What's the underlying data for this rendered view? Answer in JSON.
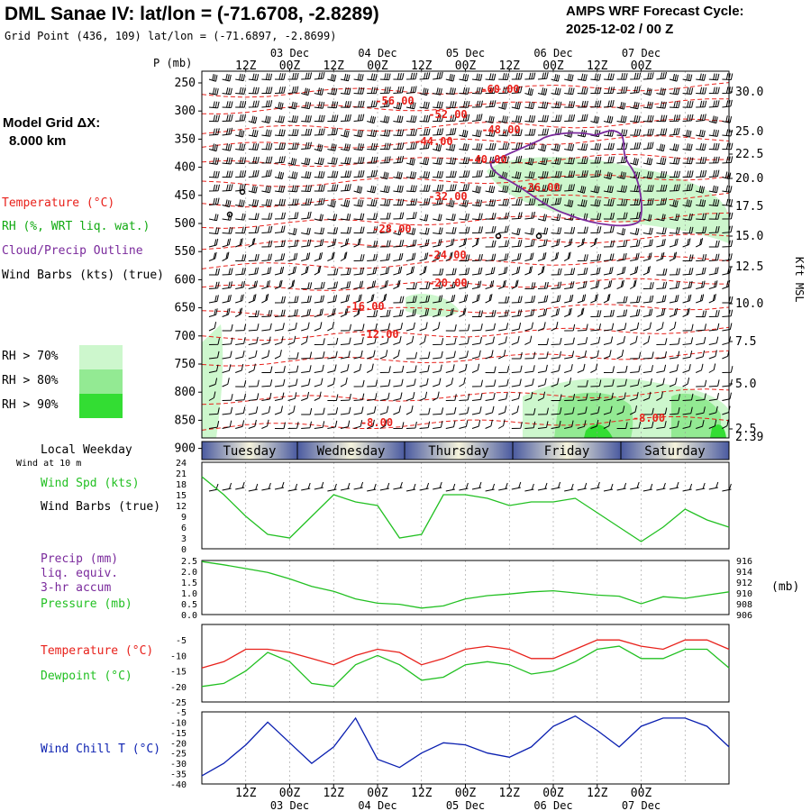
{
  "header": {
    "title": "DML Sanae IV:  lat/lon = (-71.6708, -2.8289)",
    "grid_point": "Grid Point (436, 109) lat/lon = (-71.6897, -2.8699)",
    "cycle_label": "AMPS WRF Forecast Cycle:",
    "cycle_value": "2025-12-02 / 00  Z"
  },
  "left_panel": {
    "model_grid_label": "Model Grid ΔX:",
    "model_grid_value": "8.000 km",
    "legend_temperature": "Temperature (°C)",
    "legend_rh": "RH (%, WRT liq. wat.)",
    "legend_cloud": "Cloud/Precip Outline",
    "legend_wind": "Wind Barbs (kts) (true)",
    "rh_levels": [
      {
        "label": "RH > 70%",
        "color": "#cdf7cd"
      },
      {
        "label": "RH > 80%",
        "color": "#93ea93"
      },
      {
        "label": "RH > 90%",
        "color": "#33dd33"
      }
    ]
  },
  "colors": {
    "temperature": "#e8211b",
    "rh_text": "#11aa11",
    "cloud": "#7a2a9c",
    "green_line": "#22c022",
    "blue_line": "#0a1fb0",
    "day_band": "#4a5aa0"
  },
  "time_axis": {
    "top_times": [
      "12Z",
      "00Z",
      "12Z",
      "00Z",
      "12Z",
      "00Z",
      "12Z",
      "00Z",
      "12Z",
      "00Z"
    ],
    "top_dates": [
      "03 Dec",
      "04 Dec",
      "05 Dec",
      "06 Dec",
      "07 Dec"
    ],
    "bottom_times": [
      "12Z",
      "00Z",
      "12Z",
      "00Z",
      "12Z",
      "00Z",
      "12Z",
      "00Z",
      "12Z",
      "00Z"
    ],
    "bottom_dates": [
      "03 Dec",
      "04 Dec",
      "05 Dec",
      "06 Dec",
      "07 Dec"
    ]
  },
  "cross_section": {
    "pressure_unit": "P (mb)",
    "pressure_ticks": [
      "250",
      "300",
      "350",
      "400",
      "450",
      "500",
      "550",
      "600",
      "650",
      "700",
      "750",
      "800",
      "850",
      "900"
    ],
    "height_ticks": [
      "30.0",
      "25.0",
      "22.5",
      "20.0",
      "17.5",
      "15.0",
      "12.5",
      "10.0",
      "7.5",
      "5.0",
      "2.5"
    ],
    "height_extra": "2.39",
    "height_axis_label": "Kft MSL",
    "temp_labels": [
      "-60.00",
      "-56.00",
      "-52.00",
      "-48.00",
      "-44.00",
      "-40.00",
      "-36.00",
      "-32.00",
      "-28.00",
      "-24.00",
      "-20.00",
      "-16.00",
      "-12.00",
      "-8.00",
      "-8.00"
    ]
  },
  "weekdays": {
    "header": "Local Weekday",
    "wind_note": "Wind at 10 m",
    "days": [
      "Tuesday",
      "Wednesday",
      "Thursday",
      "Friday",
      "Saturday"
    ]
  },
  "chart_data": [
    {
      "type": "line",
      "title": "Wind Spd (kts)",
      "secondary_label": "Wind Barbs (true)",
      "ylim": [
        0,
        24
      ],
      "yticks": [
        "0",
        "3",
        "6",
        "9",
        "12",
        "15",
        "18",
        "21",
        "24"
      ],
      "x_hours": [
        0,
        6,
        12,
        18,
        24,
        30,
        36,
        42,
        48,
        54,
        60,
        66,
        72,
        78,
        84,
        90,
        96,
        102,
        108,
        114,
        120,
        126,
        132,
        138,
        144
      ],
      "values": [
        20,
        15,
        9,
        4,
        3,
        9,
        15,
        13,
        12,
        3,
        4,
        15,
        15,
        14,
        12,
        13,
        13,
        14,
        10,
        6,
        2,
        6,
        11,
        8,
        6
      ]
    },
    {
      "type": "line",
      "title": "Pressure (mb)",
      "precip_label": "Precip (mm)",
      "precip_sub1": "liq. equiv.",
      "precip_sub2": "3-hr accum",
      "unit_label": "(mb)",
      "left_ticks": [
        "0.0",
        "0.5",
        "1.0",
        "1.5",
        "2.0",
        "2.5"
      ],
      "right_ticks": [
        "906",
        "908",
        "910",
        "912",
        "914",
        "916"
      ],
      "ylim": [
        906,
        916
      ],
      "x_hours": [
        0,
        6,
        12,
        18,
        24,
        30,
        36,
        42,
        48,
        54,
        60,
        66,
        72,
        78,
        84,
        90,
        96,
        102,
        108,
        114,
        120,
        126,
        132,
        138,
        144
      ],
      "values": [
        915.8,
        915.2,
        914.5,
        913.8,
        912.6,
        911.2,
        910.3,
        908.9,
        908.1,
        907.9,
        907.2,
        907.6,
        908.9,
        909.5,
        909.8,
        910.2,
        910.4,
        910.0,
        909.6,
        909.4,
        908.0,
        909.3,
        909.0,
        909.6,
        910.2
      ]
    },
    {
      "type": "line",
      "title": "Temperature (°C)",
      "dewpoint_label": "Dewpoint (°C)",
      "ylim": [
        -25,
        0
      ],
      "yticks": [
        "-25",
        "-20",
        "-15",
        "-10",
        "-5"
      ],
      "x_hours": [
        0,
        6,
        12,
        18,
        24,
        30,
        36,
        42,
        48,
        54,
        60,
        66,
        72,
        78,
        84,
        90,
        96,
        102,
        108,
        114,
        120,
        126,
        132,
        138,
        144
      ],
      "series": [
        {
          "name": "Temperature",
          "color": "#e8211b",
          "values": [
            -14,
            -12,
            -8,
            -8,
            -9,
            -11,
            -13,
            -10,
            -8,
            -9,
            -13,
            -11,
            -8,
            -7,
            -8,
            -11,
            -11,
            -8,
            -5,
            -5,
            -7,
            -8,
            -5,
            -5,
            -8
          ]
        },
        {
          "name": "Dewpoint",
          "color": "#22c022",
          "values": [
            -20,
            -19,
            -15,
            -9,
            -12,
            -19,
            -20,
            -13,
            -10,
            -13,
            -18,
            -17,
            -13,
            -12,
            -13,
            -16,
            -15,
            -12,
            -8,
            -7,
            -11,
            -11,
            -8,
            -8,
            -14
          ]
        }
      ]
    },
    {
      "type": "line",
      "title": "Wind Chill T (°C)",
      "ylim": [
        -40,
        -5
      ],
      "yticks": [
        "-40",
        "-35",
        "-30",
        "-25",
        "-20",
        "-15",
        "-10",
        "-5"
      ],
      "x_hours": [
        0,
        6,
        12,
        18,
        24,
        30,
        36,
        42,
        48,
        54,
        60,
        66,
        72,
        78,
        84,
        90,
        96,
        102,
        108,
        114,
        120,
        126,
        132,
        138,
        144
      ],
      "values": [
        -36,
        -30,
        -21,
        -10,
        -20,
        -30,
        -22,
        -8,
        -28,
        -32,
        -25,
        -20,
        -21,
        -25,
        -27,
        -22,
        -12,
        -7,
        -14,
        -22,
        -12,
        -8,
        -8,
        -12,
        -22
      ]
    }
  ]
}
